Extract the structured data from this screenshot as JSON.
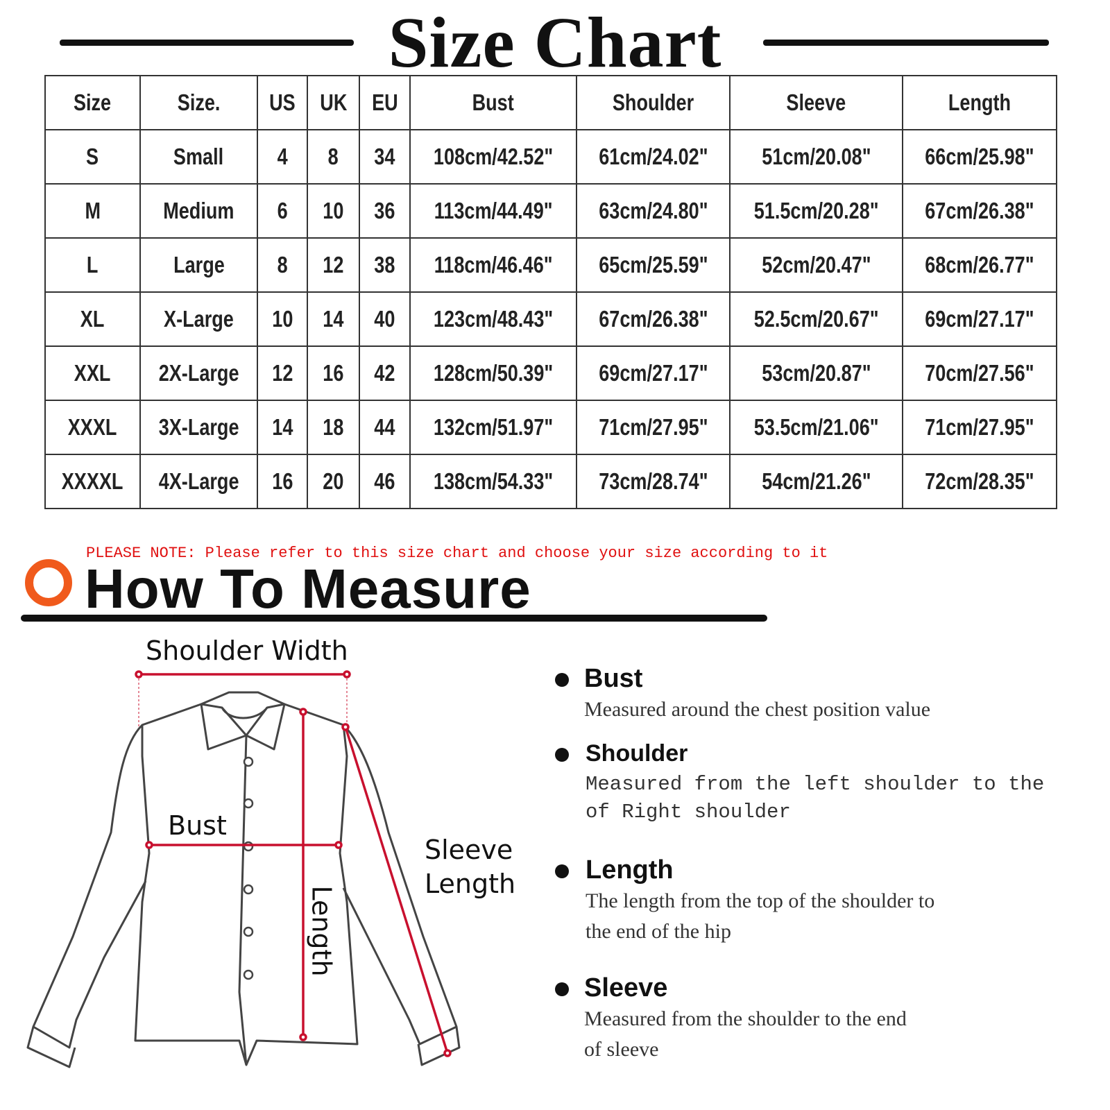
{
  "title": "Size Chart",
  "table": {
    "headers": [
      "Size",
      "Size.",
      "US",
      "UK",
      "EU",
      "Bust",
      "Shoulder",
      "Sleeve",
      "Length"
    ],
    "rows": [
      [
        "S",
        "Small",
        "4",
        "8",
        "34",
        "108cm/42.52\"",
        "61cm/24.02\"",
        "51cm/20.08\"",
        "66cm/25.98\""
      ],
      [
        "M",
        "Medium",
        "6",
        "10",
        "36",
        "113cm/44.49\"",
        "63cm/24.80\"",
        "51.5cm/20.28\"",
        "67cm/26.38\""
      ],
      [
        "L",
        "Large",
        "8",
        "12",
        "38",
        "118cm/46.46\"",
        "65cm/25.59\"",
        "52cm/20.47\"",
        "68cm/26.77\""
      ],
      [
        "XL",
        "X-Large",
        "10",
        "14",
        "40",
        "123cm/48.43\"",
        "67cm/26.38\"",
        "52.5cm/20.67\"",
        "69cm/27.17\""
      ],
      [
        "XXL",
        "2X-Large",
        "12",
        "16",
        "42",
        "128cm/50.39\"",
        "69cm/27.17\"",
        "53cm/20.87\"",
        "70cm/27.56\""
      ],
      [
        "XXXL",
        "3X-Large",
        "14",
        "18",
        "44",
        "132cm/51.97\"",
        "71cm/27.95\"",
        "53.5cm/21.06\"",
        "71cm/27.95\""
      ],
      [
        "XXXXL",
        "4X-Large",
        "16",
        "20",
        "46",
        "138cm/54.33\"",
        "73cm/28.74\"",
        "54cm/21.26\"",
        "72cm/28.35\""
      ]
    ]
  },
  "note": "PLEASE NOTE: Please refer to this size chart and choose your size according to it",
  "how_to": {
    "title": "How To Measure",
    "diagram_labels": {
      "shoulder": "Shoulder Width",
      "bust": "Bust",
      "sleeve1": "Sleeve",
      "sleeve2": "Length",
      "length": "Length"
    },
    "items": [
      {
        "name": "Bust",
        "desc": [
          "Measured around the chest position value"
        ]
      },
      {
        "name": "Shoulder",
        "desc": [
          "Measured from the left shoulder to the",
          "of Right shoulder"
        ]
      },
      {
        "name": "Length",
        "desc": [
          "The length from the top of the shoulder to",
          "the end of the hip"
        ]
      },
      {
        "name": "Sleeve",
        "desc": [
          "Measured from the shoulder to the end",
          "of sleeve"
        ]
      }
    ]
  },
  "colors": {
    "accent": "#f05a1c",
    "note": "#e01010",
    "measure_line": "#c8102e"
  }
}
